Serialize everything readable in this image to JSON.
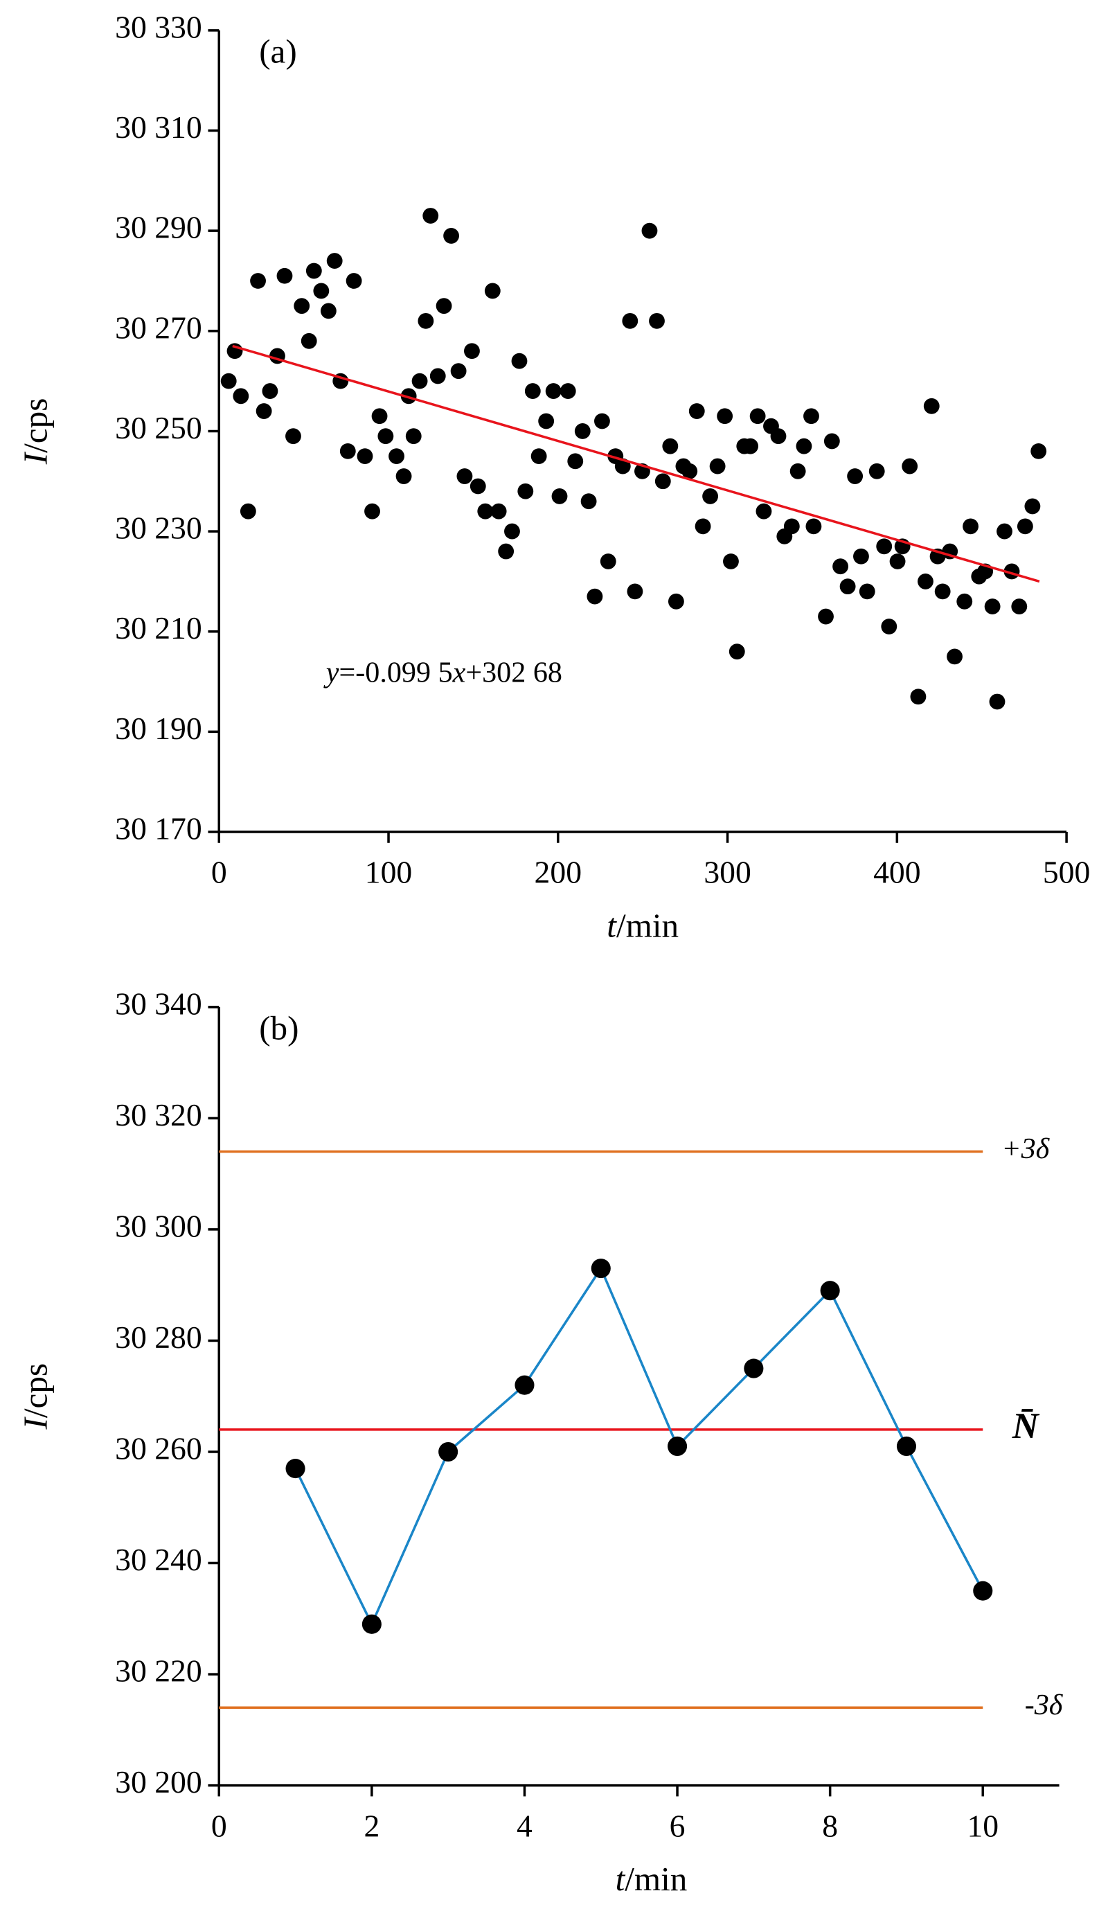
{
  "chart_data": [
    {
      "type": "scatter",
      "panel_label": "(a)",
      "xlabel": [
        "t",
        "/min"
      ],
      "ylabel": [
        "I",
        "/cps"
      ],
      "xlim": [
        0,
        500
      ],
      "xticks": [
        0,
        100,
        200,
        300,
        400,
        500
      ],
      "ylim": [
        30170,
        30330
      ],
      "yticks": [
        {
          "value": 30170,
          "label": "30 170"
        },
        {
          "value": 30190,
          "label": "30 190"
        },
        {
          "value": 30210,
          "label": "30 210"
        },
        {
          "value": 30230,
          "label": "30 230"
        },
        {
          "value": 30250,
          "label": "30 250"
        },
        {
          "value": 30270,
          "label": "30 270"
        },
        {
          "value": 30290,
          "label": "30 290"
        },
        {
          "value": 30310,
          "label": "30 310"
        },
        {
          "value": 30330,
          "label": "30 330"
        }
      ],
      "color": "#000000",
      "x": [
        5.7,
        9.3,
        12.9,
        17.2,
        23.0,
        26.5,
        30.1,
        34.4,
        38.7,
        43.8,
        48.8,
        53.1,
        56.0,
        60.3,
        64.6,
        68.2,
        71.7,
        76.0,
        79.6,
        86.1,
        90.4,
        94.7,
        98.3,
        104.7,
        109.0,
        111.9,
        114.8,
        118.4,
        122.0,
        124.8,
        129.1,
        132.7,
        137.0,
        141.3,
        144.9,
        149.2,
        152.8,
        157.1,
        161.4,
        165.0,
        169.3,
        172.9,
        177.2,
        180.8,
        185.1,
        188.7,
        193.0,
        197.3,
        200.9,
        205.9,
        210.2,
        214.5,
        218.1,
        221.7,
        226.0,
        229.6,
        233.9,
        238.2,
        242.5,
        245.4,
        249.7,
        254.0,
        258.3,
        261.9,
        266.2,
        269.7,
        274.0,
        277.6,
        281.9,
        285.5,
        289.8,
        294.1,
        298.4,
        302.0,
        305.6,
        309.9,
        313.5,
        317.8,
        321.4,
        325.7,
        330.0,
        333.6,
        337.9,
        341.5,
        345.1,
        349.4,
        350.8,
        358.0,
        361.6,
        366.6,
        370.9,
        375.2,
        378.8,
        382.4,
        388.1,
        392.4,
        395.3,
        400.3,
        403.2,
        407.5,
        412.5,
        416.8,
        420.4,
        424.0,
        426.9,
        431.2,
        434.0,
        439.8,
        443.4,
        448.4,
        452.0,
        456.3,
        459.1,
        463.4,
        467.7,
        472.1,
        475.6,
        479.9,
        483.5
      ],
      "values": [
        30260,
        30266,
        30257,
        30234,
        30280,
        30254,
        30258,
        30265,
        30281,
        30249,
        30275,
        30268,
        30282,
        30278,
        30274,
        30284,
        30260,
        30246,
        30280,
        30245,
        30234,
        30253,
        30249,
        30245,
        30241,
        30257,
        30249,
        30260,
        30272,
        30293,
        30261,
        30275,
        30289,
        30262,
        30241,
        30266,
        30239,
        30234,
        30278,
        30234,
        30226,
        30230,
        30264,
        30238,
        30258,
        30245,
        30252,
        30258,
        30237,
        30258,
        30244,
        30250,
        30236,
        30217,
        30252,
        30224,
        30245,
        30243,
        30272,
        30218,
        30242,
        30290,
        30272,
        30240,
        30247,
        30216,
        30243,
        30242,
        30254,
        30231,
        30237,
        30243,
        30253,
        30224,
        30206,
        30247,
        30247,
        30253,
        30234,
        30251,
        30249,
        30229,
        30231,
        30242,
        30247,
        30253,
        30231,
        30213,
        30248,
        30223,
        30219,
        30241,
        30225,
        30218,
        30242,
        30227,
        30211,
        30224,
        30227,
        30243,
        30197,
        30220,
        30255,
        30225,
        30218,
        30226,
        30205,
        30216,
        30231,
        30221,
        30222,
        30215,
        30196,
        30230,
        30222,
        30215,
        30231,
        30235,
        30246
      ],
      "trend": {
        "x": [
          8,
          484
        ],
        "values": [
          30267,
          30220
        ],
        "color": "#e8141c"
      },
      "annotation": [
        "y",
        "=-0.099 5",
        "x",
        "+302 68"
      ]
    },
    {
      "type": "line",
      "panel_label": "(b)",
      "xlabel": [
        "t",
        "/min"
      ],
      "ylabel": [
        "I",
        "/cps"
      ],
      "xlim": [
        0,
        11
      ],
      "xticks": [
        0,
        2,
        4,
        6,
        8,
        10
      ],
      "ylim": [
        30200,
        30340
      ],
      "yticks": [
        {
          "value": 30200,
          "label": "30 200"
        },
        {
          "value": 30220,
          "label": "30 220"
        },
        {
          "value": 30240,
          "label": "30 240"
        },
        {
          "value": 30260,
          "label": "30 260"
        },
        {
          "value": 30280,
          "label": "30 280"
        },
        {
          "value": 30300,
          "label": "30 300"
        },
        {
          "value": 30320,
          "label": "30 320"
        },
        {
          "value": 30340,
          "label": "30 340"
        }
      ],
      "color": "#1a86c8",
      "marker_color": "#000000",
      "x": [
        1,
        2,
        3,
        4,
        5,
        6,
        7,
        8,
        9,
        10
      ],
      "values": [
        30257,
        30229,
        30260,
        30272,
        30293,
        30261,
        30275,
        30289,
        30261,
        30235
      ],
      "hlines": [
        {
          "name": "+3δ",
          "value": 30314,
          "color": "#e07020"
        },
        {
          "name": "N̄",
          "value": 30264,
          "color": "#e8141c"
        },
        {
          "name": "-3δ",
          "value": 30214,
          "color": "#e07020"
        }
      ]
    }
  ]
}
